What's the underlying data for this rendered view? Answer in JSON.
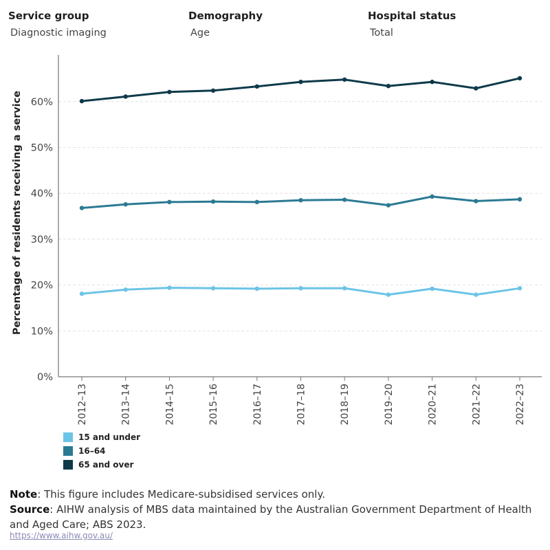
{
  "filters": {
    "service_group": {
      "label": "Service group",
      "value": "Diagnostic imaging"
    },
    "demography": {
      "label": "Demography",
      "value": "Age"
    },
    "hospital_status": {
      "label": "Hospital status",
      "value": "Total"
    }
  },
  "chart_data": {
    "type": "line",
    "title": "",
    "xlabel": "",
    "ylabel": "Percentage of residents receiving a service",
    "categories": [
      "2012–13",
      "2013–14",
      "2014–15",
      "2015–16",
      "2016–17",
      "2017–18",
      "2018–19",
      "2019–20",
      "2020–21",
      "2021–22",
      "2022–23"
    ],
    "ylim": [
      0,
      70
    ],
    "yticks": [
      0,
      10,
      20,
      30,
      40,
      50,
      60
    ],
    "ytick_labels": [
      "0%",
      "10%",
      "20%",
      "30%",
      "40%",
      "50%",
      "60%"
    ],
    "grid": true,
    "legend_position": "bottom-left",
    "series": [
      {
        "name": "15 and under",
        "color": "#6bc4e6",
        "values": [
          18.1,
          19.0,
          19.4,
          19.3,
          19.2,
          19.3,
          19.3,
          17.9,
          19.2,
          17.9,
          19.3
        ]
      },
      {
        "name": "16–64",
        "color": "#2b7a93",
        "values": [
          36.8,
          37.6,
          38.1,
          38.2,
          38.1,
          38.5,
          38.6,
          37.4,
          39.3,
          38.3,
          38.7
        ]
      },
      {
        "name": "65 and over",
        "color": "#0e3a4a",
        "values": [
          60.1,
          61.1,
          62.1,
          62.4,
          63.3,
          64.3,
          64.8,
          63.4,
          64.3,
          62.9,
          65.1
        ]
      }
    ]
  },
  "footer": {
    "note_label": "Note",
    "note_text": ": This figure includes Medicare-subsidised services only.",
    "source_label": "Source",
    "source_text": ": AIHW analysis of MBS data maintained by the Australian Government Department of Health and Aged Care; ABS 2023.",
    "link": "https://www.aihw.gov.au/"
  }
}
